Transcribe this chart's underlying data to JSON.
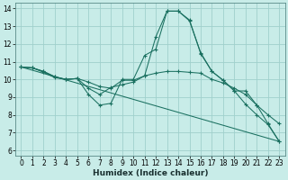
{
  "xlabel": "Humidex (Indice chaleur)",
  "xlim": [
    -0.5,
    23.5
  ],
  "ylim": [
    5.7,
    14.3
  ],
  "xticks": [
    0,
    1,
    2,
    3,
    4,
    5,
    6,
    7,
    8,
    9,
    10,
    11,
    12,
    13,
    14,
    15,
    16,
    17,
    18,
    19,
    20,
    21,
    22,
    23
  ],
  "yticks": [
    6,
    7,
    8,
    9,
    10,
    11,
    12,
    13,
    14
  ],
  "background_color": "#c8ece8",
  "grid_color": "#a0d0cc",
  "line_color": "#1a7060",
  "line1_x": [
    0,
    1,
    2,
    3,
    4,
    5,
    6,
    7,
    8,
    9,
    10,
    11,
    12,
    13,
    14,
    15,
    16,
    17,
    18,
    19,
    20,
    21,
    22,
    23
  ],
  "line1_y": [
    10.7,
    10.65,
    10.4,
    10.1,
    10.0,
    10.05,
    9.15,
    8.55,
    8.65,
    10.0,
    10.0,
    11.35,
    11.7,
    13.85,
    13.85,
    13.35,
    11.45,
    10.45,
    9.95,
    9.35,
    9.35,
    8.55,
    7.5,
    6.5
  ],
  "line2_x": [
    0,
    1,
    2,
    3,
    4,
    5,
    6,
    7,
    8,
    9,
    10,
    11,
    12,
    13,
    14,
    15,
    16,
    17,
    18,
    19,
    20,
    21,
    22,
    23
  ],
  "line2_y": [
    10.7,
    10.65,
    10.45,
    10.15,
    10.0,
    10.05,
    9.85,
    9.6,
    9.5,
    9.95,
    9.95,
    10.2,
    10.35,
    10.45,
    10.45,
    10.4,
    10.35,
    10.0,
    9.8,
    9.5,
    9.15,
    8.55,
    8.0,
    7.5
  ],
  "line3_x": [
    0,
    1,
    2,
    3,
    4,
    5,
    6,
    7,
    8,
    9,
    10,
    11,
    12,
    13,
    14,
    15,
    16,
    17,
    18,
    19,
    20,
    21,
    22,
    23
  ],
  "line3_y": [
    10.7,
    10.65,
    10.45,
    10.15,
    10.0,
    10.05,
    9.5,
    9.15,
    9.55,
    9.7,
    9.85,
    10.2,
    12.4,
    13.85,
    13.85,
    13.3,
    11.5,
    10.45,
    9.95,
    9.35,
    8.6,
    8.0,
    7.45,
    6.5
  ],
  "line4_x": [
    0,
    23
  ],
  "line4_y": [
    10.7,
    6.5
  ],
  "figsize": [
    3.2,
    2.0
  ],
  "dpi": 100,
  "tick_fontsize": 5.5,
  "xlabel_fontsize": 6.5
}
